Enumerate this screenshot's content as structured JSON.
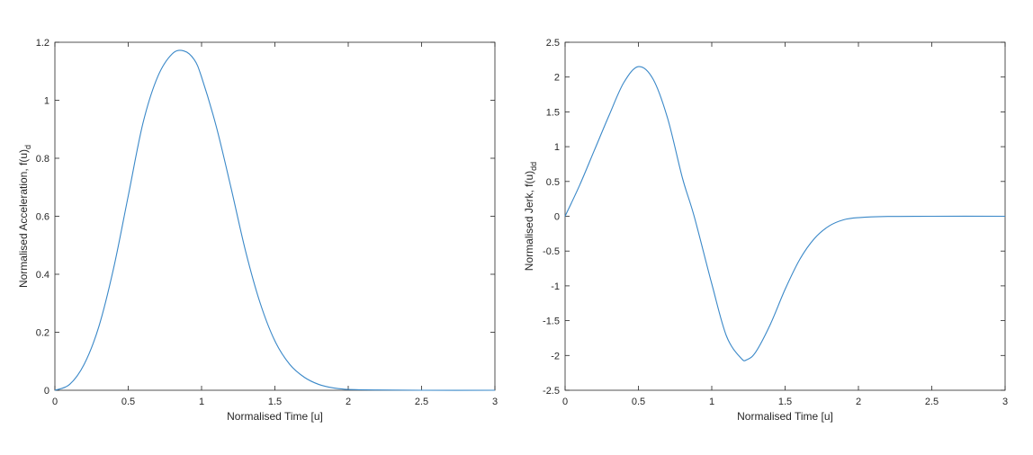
{
  "chart_data": [
    {
      "type": "line",
      "title": "",
      "xlabel": "Normalised Time [u]",
      "ylabel": "Normalised Acceleration, f(u)",
      "ylabel_subscript": "d",
      "xlim": [
        0,
        3
      ],
      "ylim": [
        0,
        1.2
      ],
      "xticks": [
        0,
        0.5,
        1,
        1.5,
        2,
        2.5,
        3
      ],
      "xtick_labels": [
        "0",
        "0.5",
        "1",
        "1.5",
        "2",
        "2.5",
        "3"
      ],
      "yticks": [
        0,
        0.2,
        0.4,
        0.6,
        0.8,
        1,
        1.2
      ],
      "ytick_labels": [
        "0",
        "0.2",
        "0.4",
        "0.6",
        "0.8",
        "1",
        "1.2"
      ],
      "grid": false,
      "color": "#3a88c8",
      "series": [
        {
          "x": [
            0,
            0.1,
            0.2,
            0.3,
            0.4,
            0.5,
            0.6,
            0.7,
            0.8,
            0.88,
            0.95,
            1.0,
            1.1,
            1.2,
            1.3,
            1.4,
            1.5,
            1.6,
            1.7,
            1.8,
            1.9,
            2.0,
            2.2,
            2.5,
            3.0
          ],
          "y": [
            0,
            0.02,
            0.09,
            0.22,
            0.42,
            0.67,
            0.92,
            1.08,
            1.16,
            1.17,
            1.14,
            1.08,
            0.91,
            0.7,
            0.48,
            0.3,
            0.17,
            0.09,
            0.045,
            0.02,
            0.008,
            0.003,
            0.001,
            0,
            0
          ]
        }
      ]
    },
    {
      "type": "line",
      "title": "",
      "xlabel": "Normalised Time [u]",
      "ylabel": "Normalised Jerk, f(u)",
      "ylabel_subscript": "dd",
      "xlim": [
        0,
        3
      ],
      "ylim": [
        -2.5,
        2.5
      ],
      "xticks": [
        0,
        0.5,
        1,
        1.5,
        2,
        2.5,
        3
      ],
      "xtick_labels": [
        "0",
        "0.5",
        "1",
        "1.5",
        "2",
        "2.5",
        "3"
      ],
      "yticks": [
        -2.5,
        -2,
        -1.5,
        -1,
        -0.5,
        0,
        0.5,
        1,
        1.5,
        2,
        2.5
      ],
      "ytick_labels": [
        "-2.5",
        "-2",
        "-1.5",
        "-1",
        "-0.5",
        "0",
        "0.5",
        "1",
        "1.5",
        "2",
        "2.5"
      ],
      "grid": false,
      "color": "#3a88c8",
      "series": [
        {
          "x": [
            0,
            0.1,
            0.2,
            0.3,
            0.4,
            0.5,
            0.6,
            0.7,
            0.8,
            0.88,
            1.0,
            1.1,
            1.2,
            1.24,
            1.3,
            1.4,
            1.5,
            1.6,
            1.7,
            1.8,
            1.9,
            2.0,
            2.2,
            2.5,
            3.0
          ],
          "y": [
            0,
            0.45,
            0.95,
            1.45,
            1.92,
            2.15,
            1.97,
            1.4,
            0.55,
            0.0,
            -0.97,
            -1.72,
            -2.04,
            -2.06,
            -1.95,
            -1.55,
            -1.05,
            -0.62,
            -0.32,
            -0.14,
            -0.05,
            -0.02,
            -0.003,
            0,
            0
          ]
        }
      ]
    }
  ]
}
